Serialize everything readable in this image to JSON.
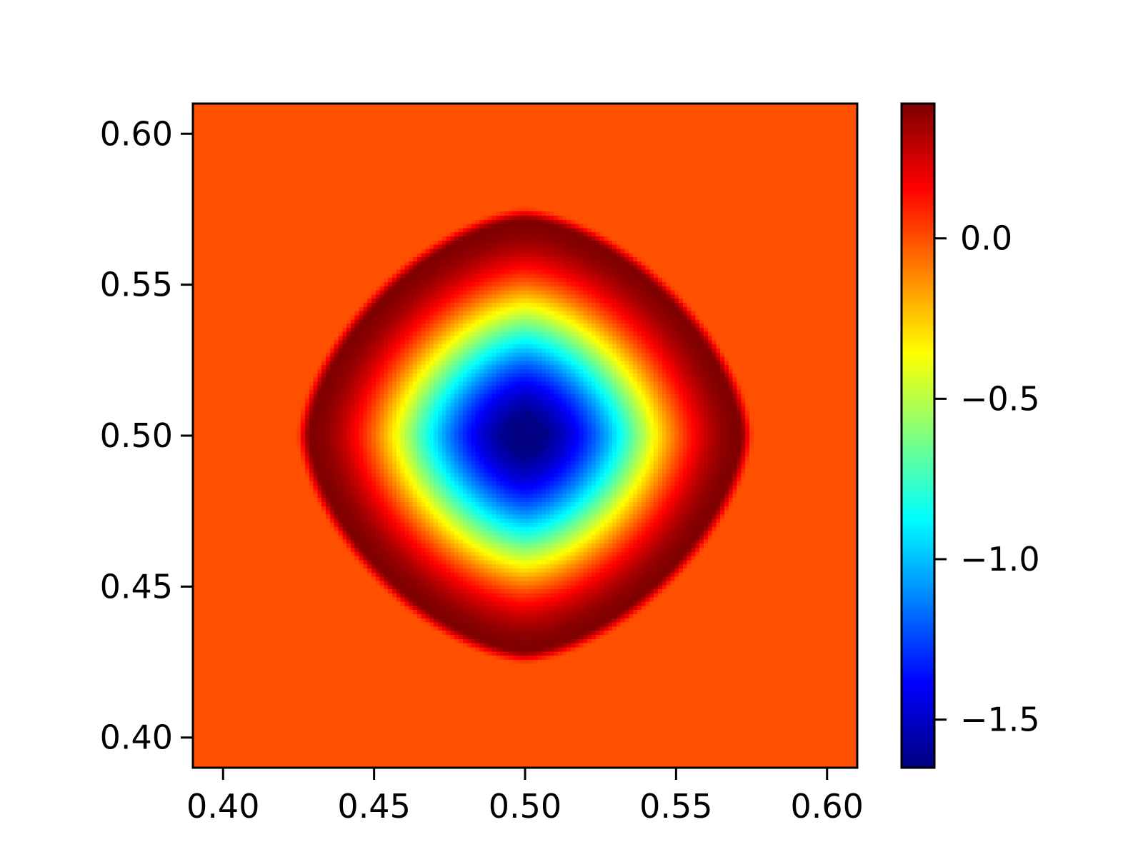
{
  "chart_data": {
    "type": "heatmap",
    "title": "",
    "xlabel": "",
    "ylabel": "",
    "colormap": "jet",
    "xlim": [
      0.39,
      0.61
    ],
    "ylim": [
      0.39,
      0.61
    ],
    "xticks": [
      0.4,
      0.45,
      0.5,
      0.55,
      0.6
    ],
    "yticks": [
      0.4,
      0.45,
      0.5,
      0.55,
      0.6
    ],
    "xtick_labels": [
      "0.40",
      "0.45",
      "0.50",
      "0.55",
      "0.60"
    ],
    "ytick_labels": [
      "0.40",
      "0.45",
      "0.50",
      "0.55",
      "0.60"
    ],
    "field": {
      "shape": "rounded-diamond ring",
      "center": [
        0.5,
        0.5
      ],
      "outer_radius": 0.076,
      "ring_radius": 0.071,
      "center_value": -1.65,
      "ring_value": 0.42,
      "background_value": 0.0,
      "grid_cells": 160
    },
    "colorbar": {
      "vmin": -1.65,
      "vmax": 0.42,
      "ticks": [
        0.0,
        -0.5,
        -1.0,
        -1.5
      ],
      "tick_labels": [
        "0.0",
        "−0.5",
        "−1.0",
        "−1.5"
      ]
    },
    "grid": false,
    "legend": "none"
  }
}
